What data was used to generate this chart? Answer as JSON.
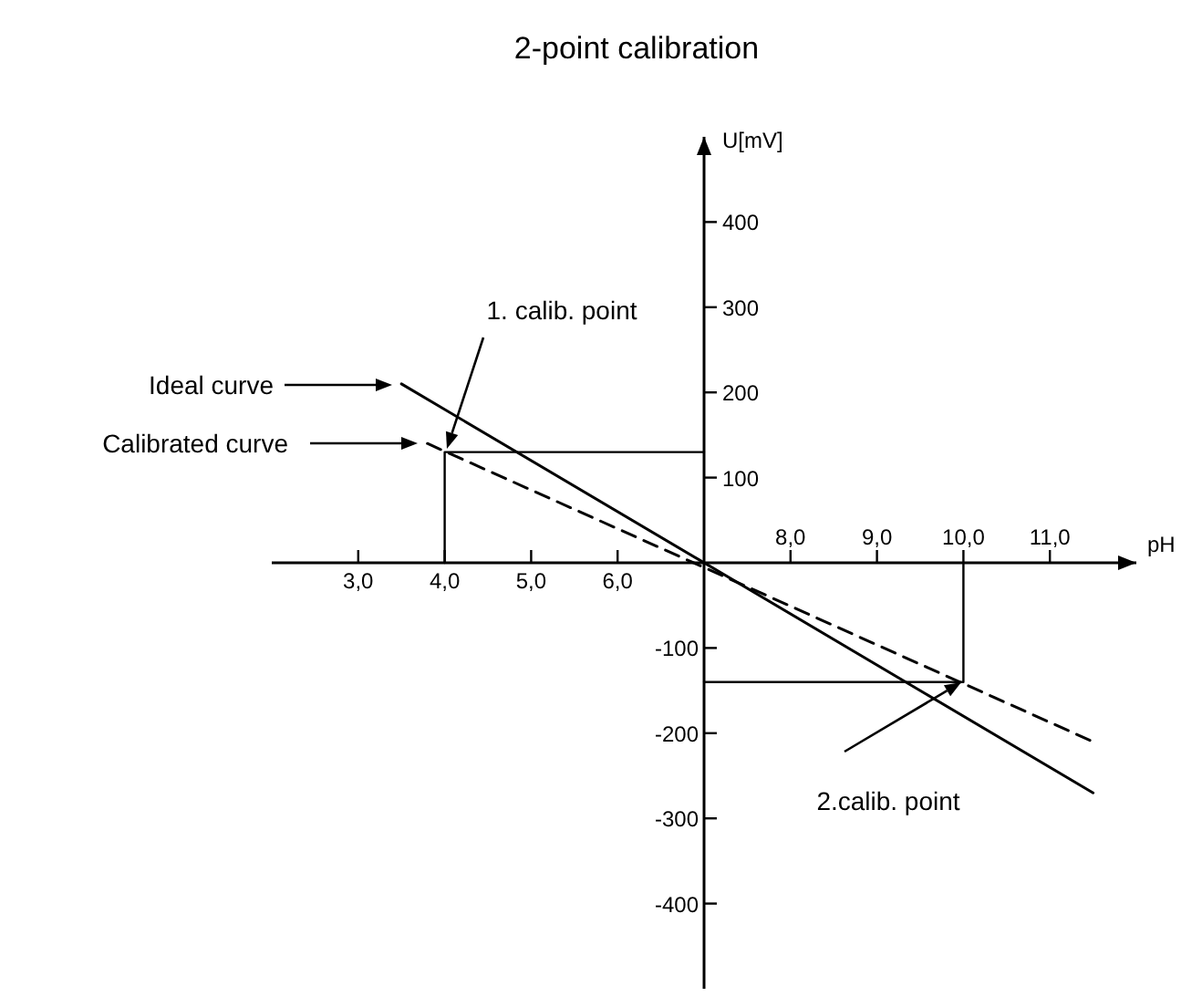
{
  "chart_data": {
    "type": "line",
    "title": "2-point calibration",
    "xlabel": "pH",
    "y2label": "U[mV]",
    "marker": "none",
    "xlim": [
      2,
      12
    ],
    "ylim": [
      -500,
      500
    ],
    "x2lim": [
      2,
      12
    ],
    "y2lim": [
      -500,
      500
    ],
    "xticks": [
      {
        "value": 3,
        "label": "3,0"
      },
      {
        "value": 4,
        "label": "4,0"
      },
      {
        "value": 5,
        "label": "5,0"
      },
      {
        "value": 6,
        "label": "6,0"
      }
    ],
    "x2ticks": [
      {
        "value": 8,
        "label": "8,0"
      },
      {
        "value": 9,
        "label": "9,0"
      },
      {
        "value": 10,
        "label": "10,0"
      },
      {
        "value": 11,
        "label": "11,0"
      }
    ],
    "yticks": [
      -400,
      -300,
      -200,
      -100
    ],
    "y2ticks": [
      100,
      200,
      300,
      400
    ],
    "grid": false,
    "series": [
      {
        "color": "#000000",
        "x": [
          3.5,
          11.5
        ],
        "values": [
          210,
          -270
        ],
        "line_style": "solid"
      },
      {
        "color": "#000000",
        "x": [
          3.8,
          11.5
        ],
        "values": [
          140,
          -210
        ],
        "line_style": "dashed"
      },
      {
        "color": "#000000",
        "x": [
          4,
          4,
          7
        ],
        "values": [
          0,
          130,
          130
        ],
        "line_style": "solid"
      },
      {
        "color": "#000000",
        "x": [
          7,
          10,
          10
        ],
        "values": [
          -140,
          -140,
          0
        ],
        "line_style": "solid"
      }
    ],
    "annotations": [
      "Ideal curve",
      "Calibrated curve",
      "1. calib. point",
      "2.calib. point"
    ]
  }
}
